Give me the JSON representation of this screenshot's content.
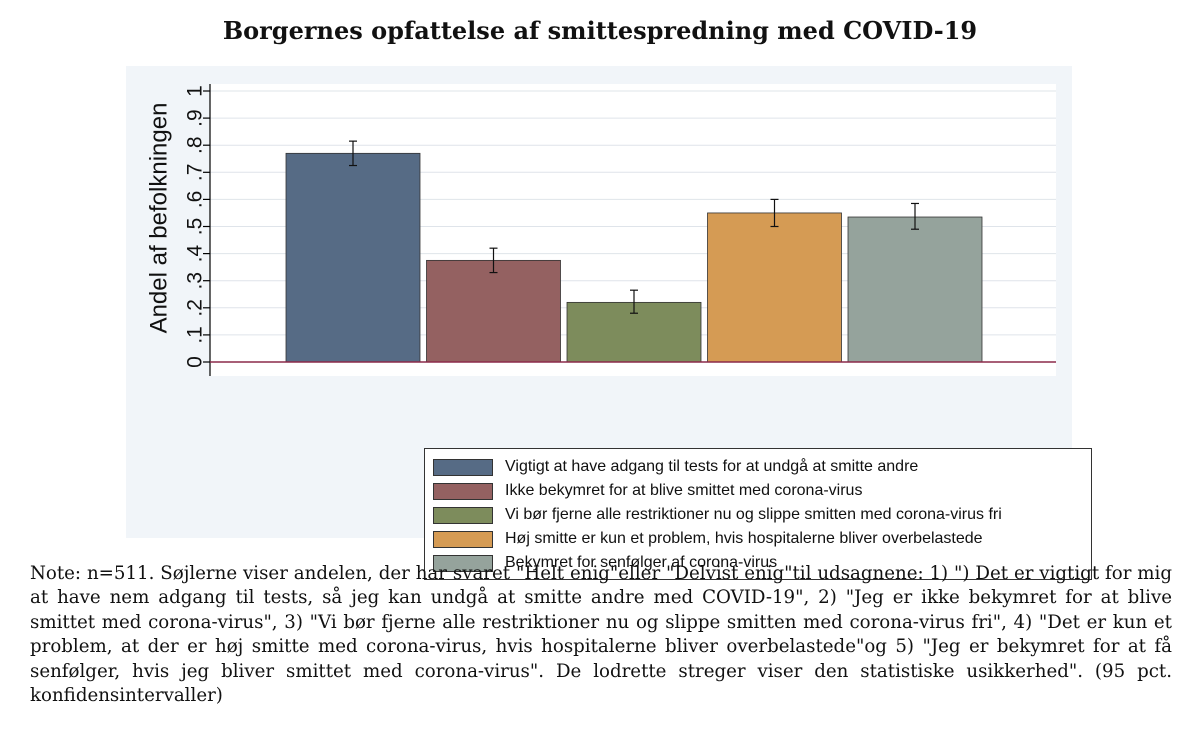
{
  "chart_data": {
    "type": "bar",
    "title": "Borgernes opfattelse af smittespredning med COVID-19",
    "xlabel": "",
    "ylabel": "Andel af befolkningen",
    "ylim": [
      0,
      1
    ],
    "yticks": [
      "0",
      ".1",
      ".2",
      ".3",
      ".4",
      ".5",
      ".6",
      ".7",
      ".8",
      ".9",
      "1"
    ],
    "grid": true,
    "legend_position": "bottom",
    "series": [
      {
        "name": "Vigtigt at have adgang til tests for at undgå at smitte andre",
        "value": 0.77,
        "ci": [
          0.725,
          0.815
        ],
        "color": "#566b85"
      },
      {
        "name": "Ikke bekymret for at blive smittet med corona-virus",
        "value": 0.375,
        "ci": [
          0.33,
          0.42
        ],
        "color": "#946161"
      },
      {
        "name": "Vi bør fjerne alle restriktioner nu og slippe smitten med corona-virus fri",
        "value": 0.22,
        "ci": [
          0.18,
          0.265
        ],
        "color": "#7d8c5c"
      },
      {
        "name": "Høj smitte er kun et problem, hvis hospitalerne bliver overbelastede",
        "value": 0.55,
        "ci": [
          0.5,
          0.6
        ],
        "color": "#d59b54"
      },
      {
        "name": "Bekymret for senfølger af corona-virus",
        "value": 0.535,
        "ci": [
          0.49,
          0.585
        ],
        "color": "#95a39c"
      }
    ]
  },
  "note": "Note: n=511. Søjlerne viser andelen, der har svaret \"Helt enig\"eller \"Delvist enig\"til udsagnene: 1) \") Det er vigtigt for mig at have nem adgang til tests, så jeg kan undgå at smitte andre med COVID-19\", 2) \"Jeg er ikke bekymret for at blive smittet med corona-virus\", 3) \"Vi bør fjerne alle restriktioner nu og slippe smitten med corona-virus fri\", 4) \"Det er kun et problem, at der er høj smitte med corona-virus, hvis hospitalerne bliver overbelastede\"og 5) \"Jeg er bekymret for at få senfølger, hvis jeg bliver smittet med corona-virus\". De lodrette streger viser den statistiske usikkerhed\". (95 pct. konfidensintervaller)",
  "colors": {
    "baseline": "#8b2a4a",
    "grid": "#dfe4ea",
    "axis": "#000000"
  }
}
